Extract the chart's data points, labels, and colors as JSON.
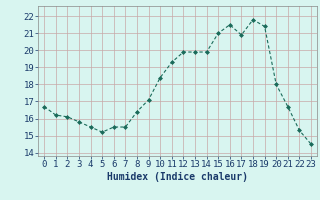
{
  "x": [
    0,
    1,
    2,
    3,
    4,
    5,
    6,
    7,
    8,
    9,
    10,
    11,
    12,
    13,
    14,
    15,
    16,
    17,
    18,
    19,
    20,
    21,
    22,
    23
  ],
  "y": [
    16.7,
    16.2,
    16.1,
    15.8,
    15.5,
    15.2,
    15.5,
    15.5,
    16.4,
    17.1,
    18.4,
    19.3,
    19.9,
    19.9,
    19.9,
    21.0,
    21.5,
    20.9,
    21.8,
    21.4,
    18.0,
    16.7,
    15.3,
    14.5
  ],
  "line_color": "#1a6b5a",
  "marker": "D",
  "marker_size": 2.0,
  "background_color": "#d8f5f0",
  "grid_color": "#c8a8a8",
  "xlabel": "Humidex (Indice chaleur)",
  "xlabel_fontsize": 7,
  "xlabel_color": "#1a3a6a",
  "xtick_labels": [
    "0",
    "1",
    "2",
    "3",
    "4",
    "5",
    "6",
    "7",
    "8",
    "9",
    "10",
    "11",
    "12",
    "13",
    "14",
    "15",
    "16",
    "17",
    "18",
    "19",
    "20",
    "21",
    "22",
    "23"
  ],
  "ytick_labels": [
    "14",
    "15",
    "16",
    "17",
    "18",
    "19",
    "20",
    "21",
    "22"
  ],
  "ylim": [
    13.8,
    22.6
  ],
  "xlim": [
    -0.5,
    23.5
  ],
  "tick_fontsize": 6.5,
  "tick_color": "#1a3a6a"
}
